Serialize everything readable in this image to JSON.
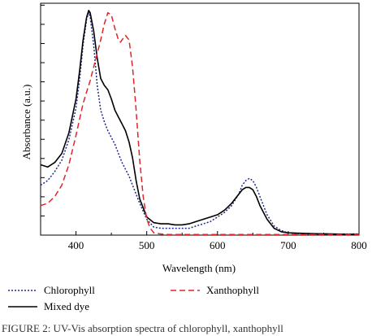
{
  "chart_data": {
    "type": "line",
    "xlabel": "Wavelength (nm)",
    "ylabel": "Absorbance (a.u.)",
    "xlim": [
      350,
      800
    ],
    "ylim": [
      0,
      1.0
    ],
    "x_ticks": [
      400,
      500,
      600,
      700,
      800
    ],
    "y_tick_count": 12,
    "show_y_tick_labels": false,
    "grid": false,
    "legend_position": "bottom",
    "series": [
      {
        "name": "Chlorophyll",
        "color": "#1f2a8a",
        "style": "dotted",
        "x": [
          350,
          360,
          370,
          380,
          390,
          400,
          405,
          410,
          415,
          418,
          420,
          425,
          430,
          435,
          440,
          445,
          450,
          455,
          460,
          465,
          470,
          475,
          480,
          490,
          500,
          510,
          520,
          530,
          540,
          550,
          560,
          570,
          580,
          590,
          600,
          610,
          620,
          630,
          635,
          640,
          645,
          650,
          655,
          660,
          670,
          680,
          690,
          700,
          720,
          740,
          760,
          780,
          800
        ],
        "y": [
          0.22,
          0.24,
          0.28,
          0.33,
          0.42,
          0.56,
          0.68,
          0.84,
          0.95,
          0.98,
          0.96,
          0.84,
          0.66,
          0.55,
          0.5,
          0.46,
          0.43,
          0.4,
          0.36,
          0.32,
          0.29,
          0.26,
          0.22,
          0.14,
          0.07,
          0.035,
          0.03,
          0.03,
          0.03,
          0.03,
          0.03,
          0.04,
          0.05,
          0.06,
          0.08,
          0.1,
          0.13,
          0.18,
          0.22,
          0.24,
          0.25,
          0.24,
          0.21,
          0.17,
          0.09,
          0.04,
          0.02,
          0.01,
          0.005,
          0.005,
          0.005,
          0.005,
          0.005
        ]
      },
      {
        "name": "Mixed dye",
        "color": "#000000",
        "style": "solid",
        "x": [
          350,
          360,
          370,
          380,
          390,
          400,
          405,
          410,
          415,
          418,
          420,
          425,
          430,
          435,
          440,
          445,
          450,
          455,
          460,
          465,
          470,
          475,
          480,
          485,
          490,
          500,
          510,
          520,
          530,
          540,
          550,
          560,
          570,
          580,
          590,
          600,
          610,
          620,
          630,
          635,
          640,
          645,
          650,
          655,
          660,
          670,
          680,
          690,
          700,
          720,
          740,
          760,
          780,
          800
        ],
        "y": [
          0.31,
          0.3,
          0.32,
          0.36,
          0.45,
          0.6,
          0.72,
          0.86,
          0.96,
          0.99,
          0.98,
          0.9,
          0.78,
          0.69,
          0.66,
          0.64,
          0.6,
          0.55,
          0.52,
          0.49,
          0.46,
          0.41,
          0.34,
          0.24,
          0.16,
          0.08,
          0.055,
          0.05,
          0.05,
          0.045,
          0.045,
          0.05,
          0.06,
          0.07,
          0.08,
          0.09,
          0.11,
          0.14,
          0.18,
          0.2,
          0.21,
          0.21,
          0.2,
          0.17,
          0.13,
          0.07,
          0.03,
          0.015,
          0.01,
          0.008,
          0.006,
          0.005,
          0.004,
          0.004
        ]
      },
      {
        "name": "Xanthophyll",
        "color": "#e0242a",
        "style": "dashed",
        "x": [
          350,
          360,
          370,
          380,
          390,
          400,
          410,
          415,
          420,
          425,
          430,
          435,
          440,
          445,
          450,
          455,
          460,
          463,
          465,
          470,
          475,
          480,
          485,
          490,
          495,
          500,
          505,
          510,
          520,
          530,
          540,
          560,
          580,
          600,
          620,
          640,
          660,
          680,
          700,
          720,
          740,
          760,
          780,
          800
        ],
        "y": [
          0.13,
          0.14,
          0.17,
          0.22,
          0.31,
          0.44,
          0.58,
          0.63,
          0.68,
          0.74,
          0.8,
          0.86,
          0.93,
          0.98,
          0.97,
          0.91,
          0.86,
          0.85,
          0.86,
          0.88,
          0.86,
          0.74,
          0.55,
          0.33,
          0.17,
          0.07,
          0.03,
          0.01,
          0.005,
          0.003,
          0.003,
          0.003,
          0.003,
          0.003,
          0.003,
          0.003,
          0.003,
          0.003,
          0.003,
          0.003,
          0.003,
          0.003,
          0.003,
          0.003
        ]
      }
    ]
  },
  "caption": "FIGURE 2: UV-Vis absorption spectra of chlorophyll, xanthophyll"
}
